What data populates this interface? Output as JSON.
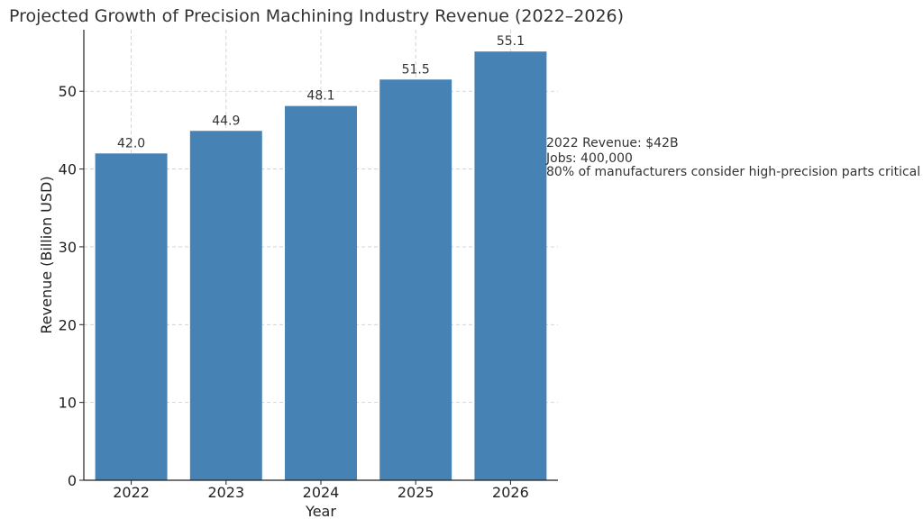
{
  "chart_data": {
    "type": "bar",
    "title": "Projected Growth of Precision Machining Industry Revenue (2022–2026)",
    "xlabel": "Year",
    "ylabel": "Revenue (Billion USD)",
    "categories": [
      "2022",
      "2023",
      "2024",
      "2025",
      "2026"
    ],
    "values": [
      42.0,
      44.9,
      48.1,
      51.5,
      55.1
    ],
    "data_labels": [
      "42.0",
      "44.9",
      "48.1",
      "51.5",
      "55.1"
    ],
    "ylim": [
      0,
      57.9
    ],
    "yticks": [
      0,
      10,
      20,
      30,
      40,
      50
    ],
    "grid": true,
    "bar_color": "#4682b4",
    "annotation": [
      "2022 Revenue: $42B",
      "Jobs: 400,000",
      "80% of manufacturers consider high-precision parts critical"
    ]
  }
}
